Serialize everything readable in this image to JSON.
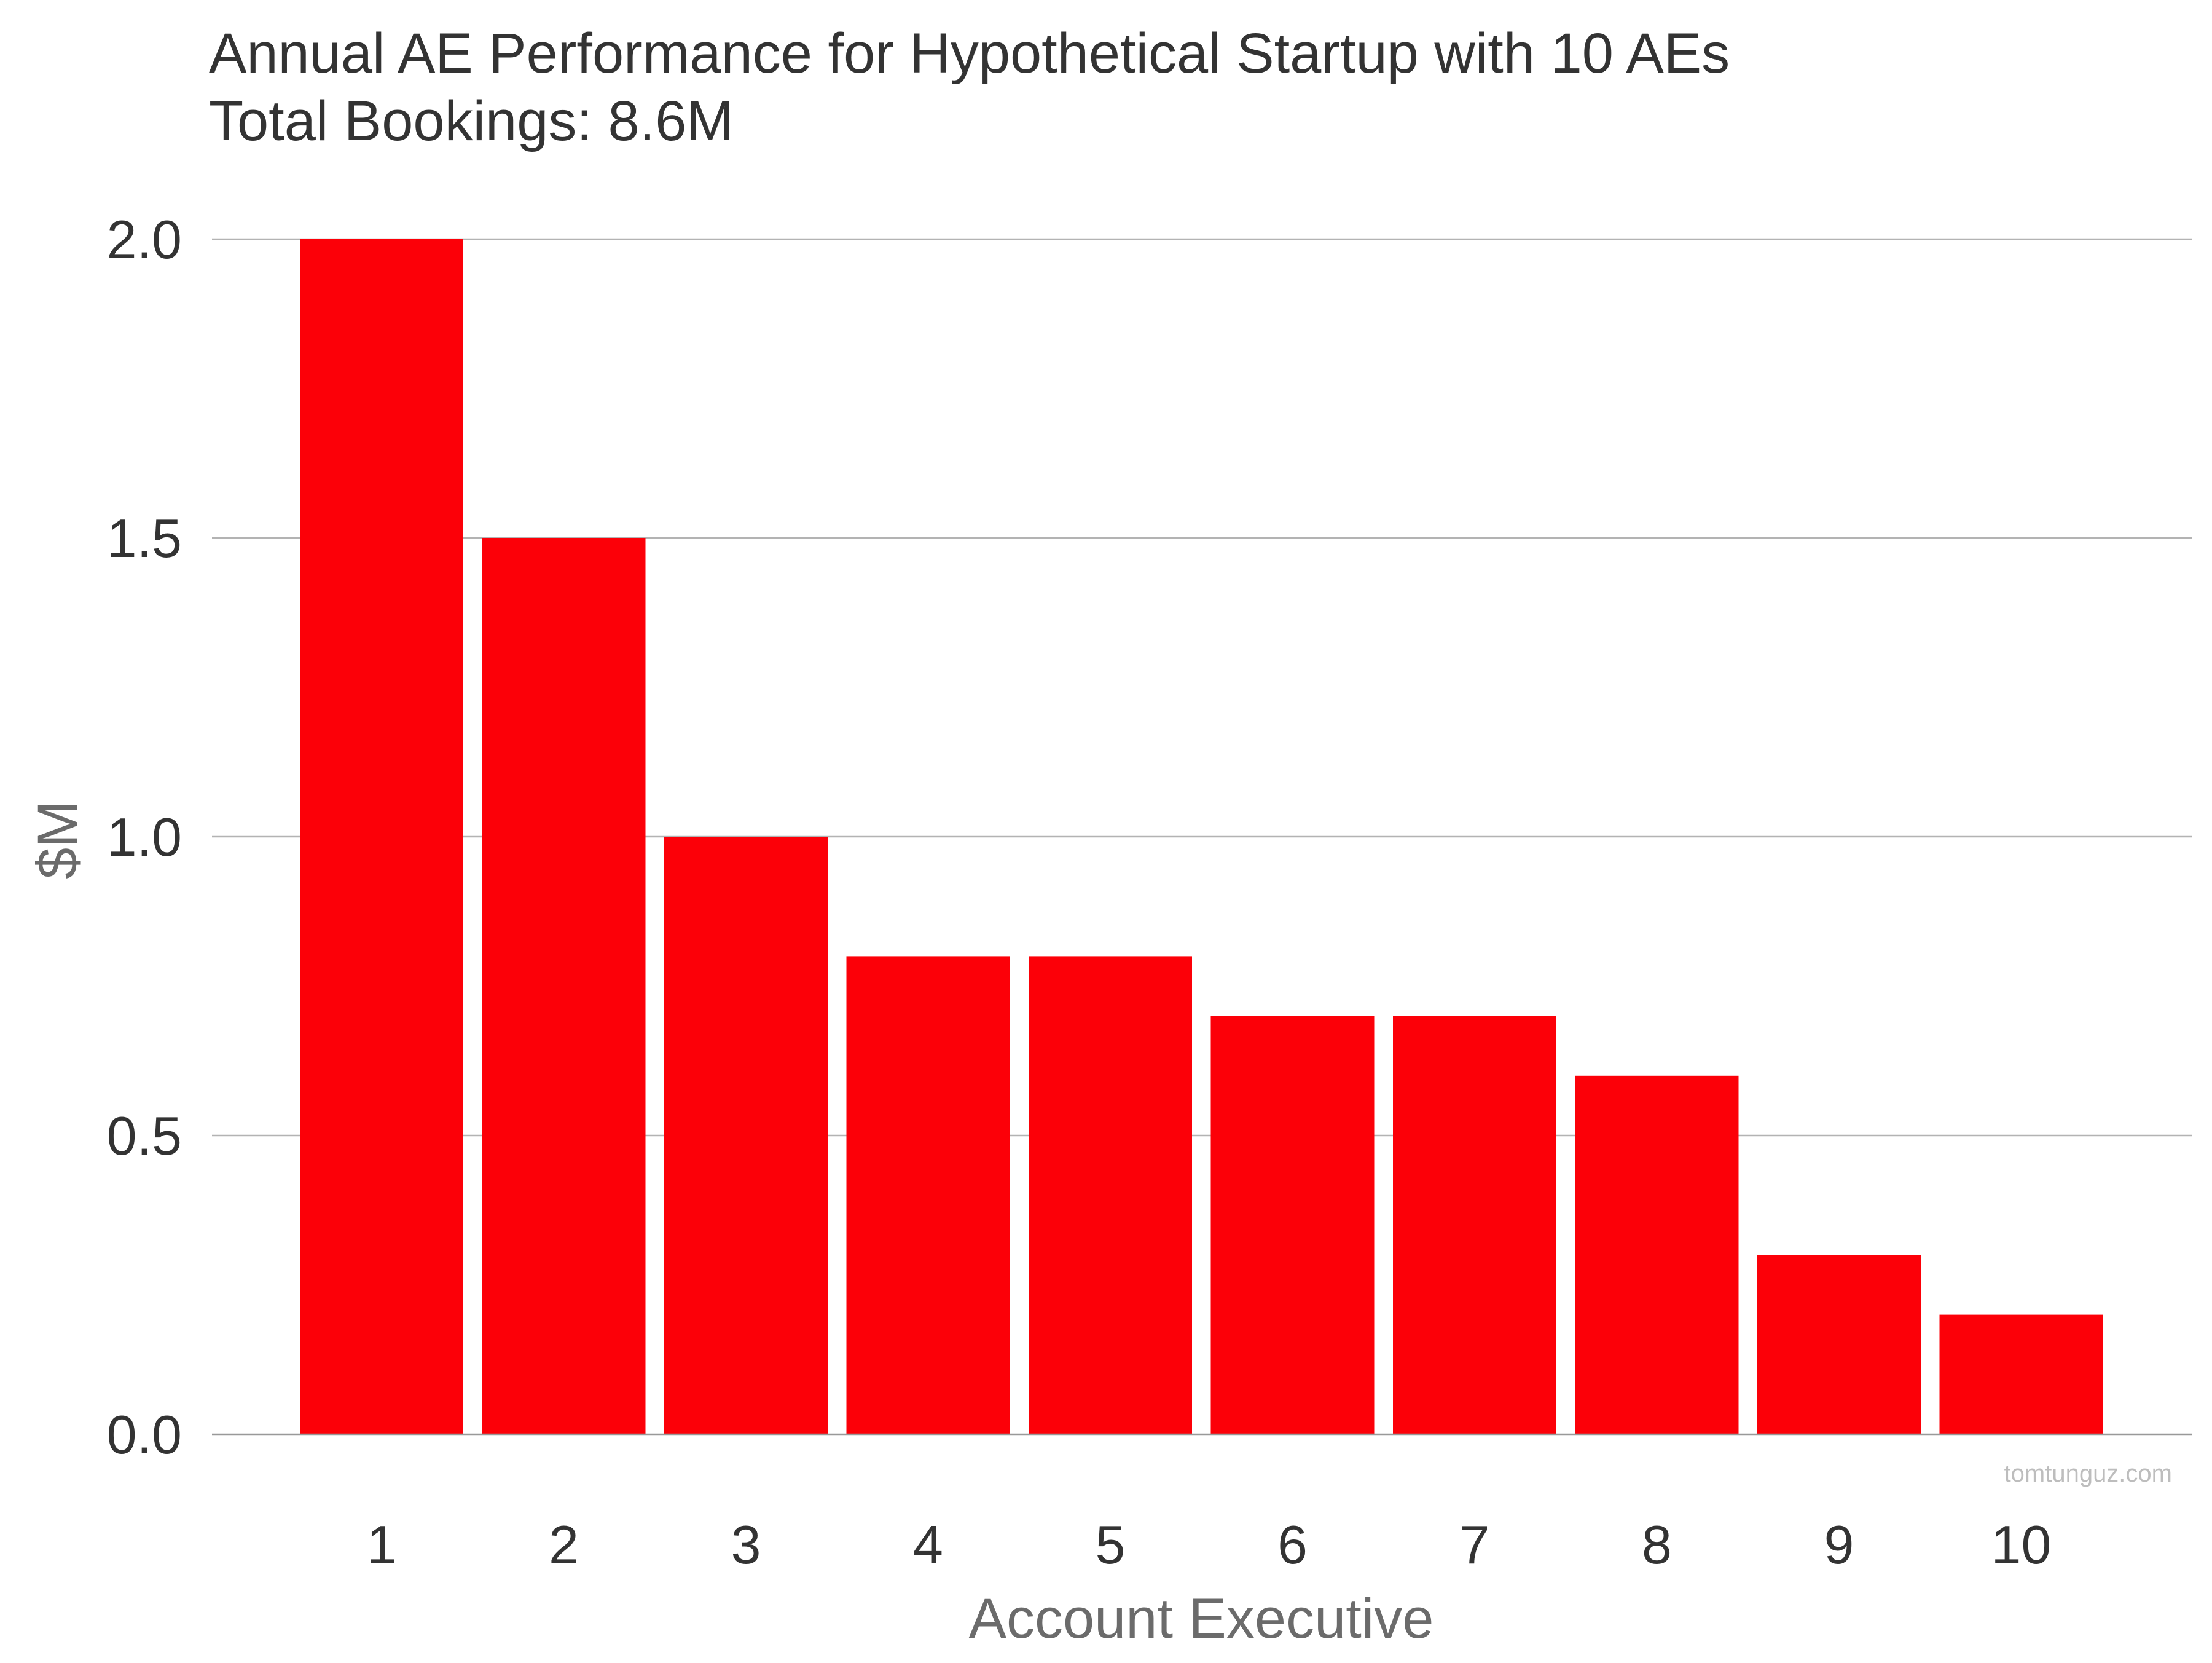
{
  "chart_data": {
    "type": "bar",
    "title": "Annual AE Performance for Hypothetical Startup with 10 AEs",
    "subtitle": "Total Bookings: 8.6M",
    "xlabel": "Account Executive",
    "ylabel": "$M",
    "categories": [
      "1",
      "2",
      "3",
      "4",
      "5",
      "6",
      "7",
      "8",
      "9",
      "10"
    ],
    "values": [
      2.0,
      1.5,
      1.0,
      0.8,
      0.8,
      0.7,
      0.7,
      0.6,
      0.3,
      0.2
    ],
    "ylim": [
      0,
      2.0
    ],
    "yticks": [
      "0.0",
      "0.5",
      "1.0",
      "1.5",
      "2.0"
    ],
    "grid": true,
    "legend": "none",
    "bar_color": "#fc0008",
    "watermark": "tomtunguz.com"
  }
}
